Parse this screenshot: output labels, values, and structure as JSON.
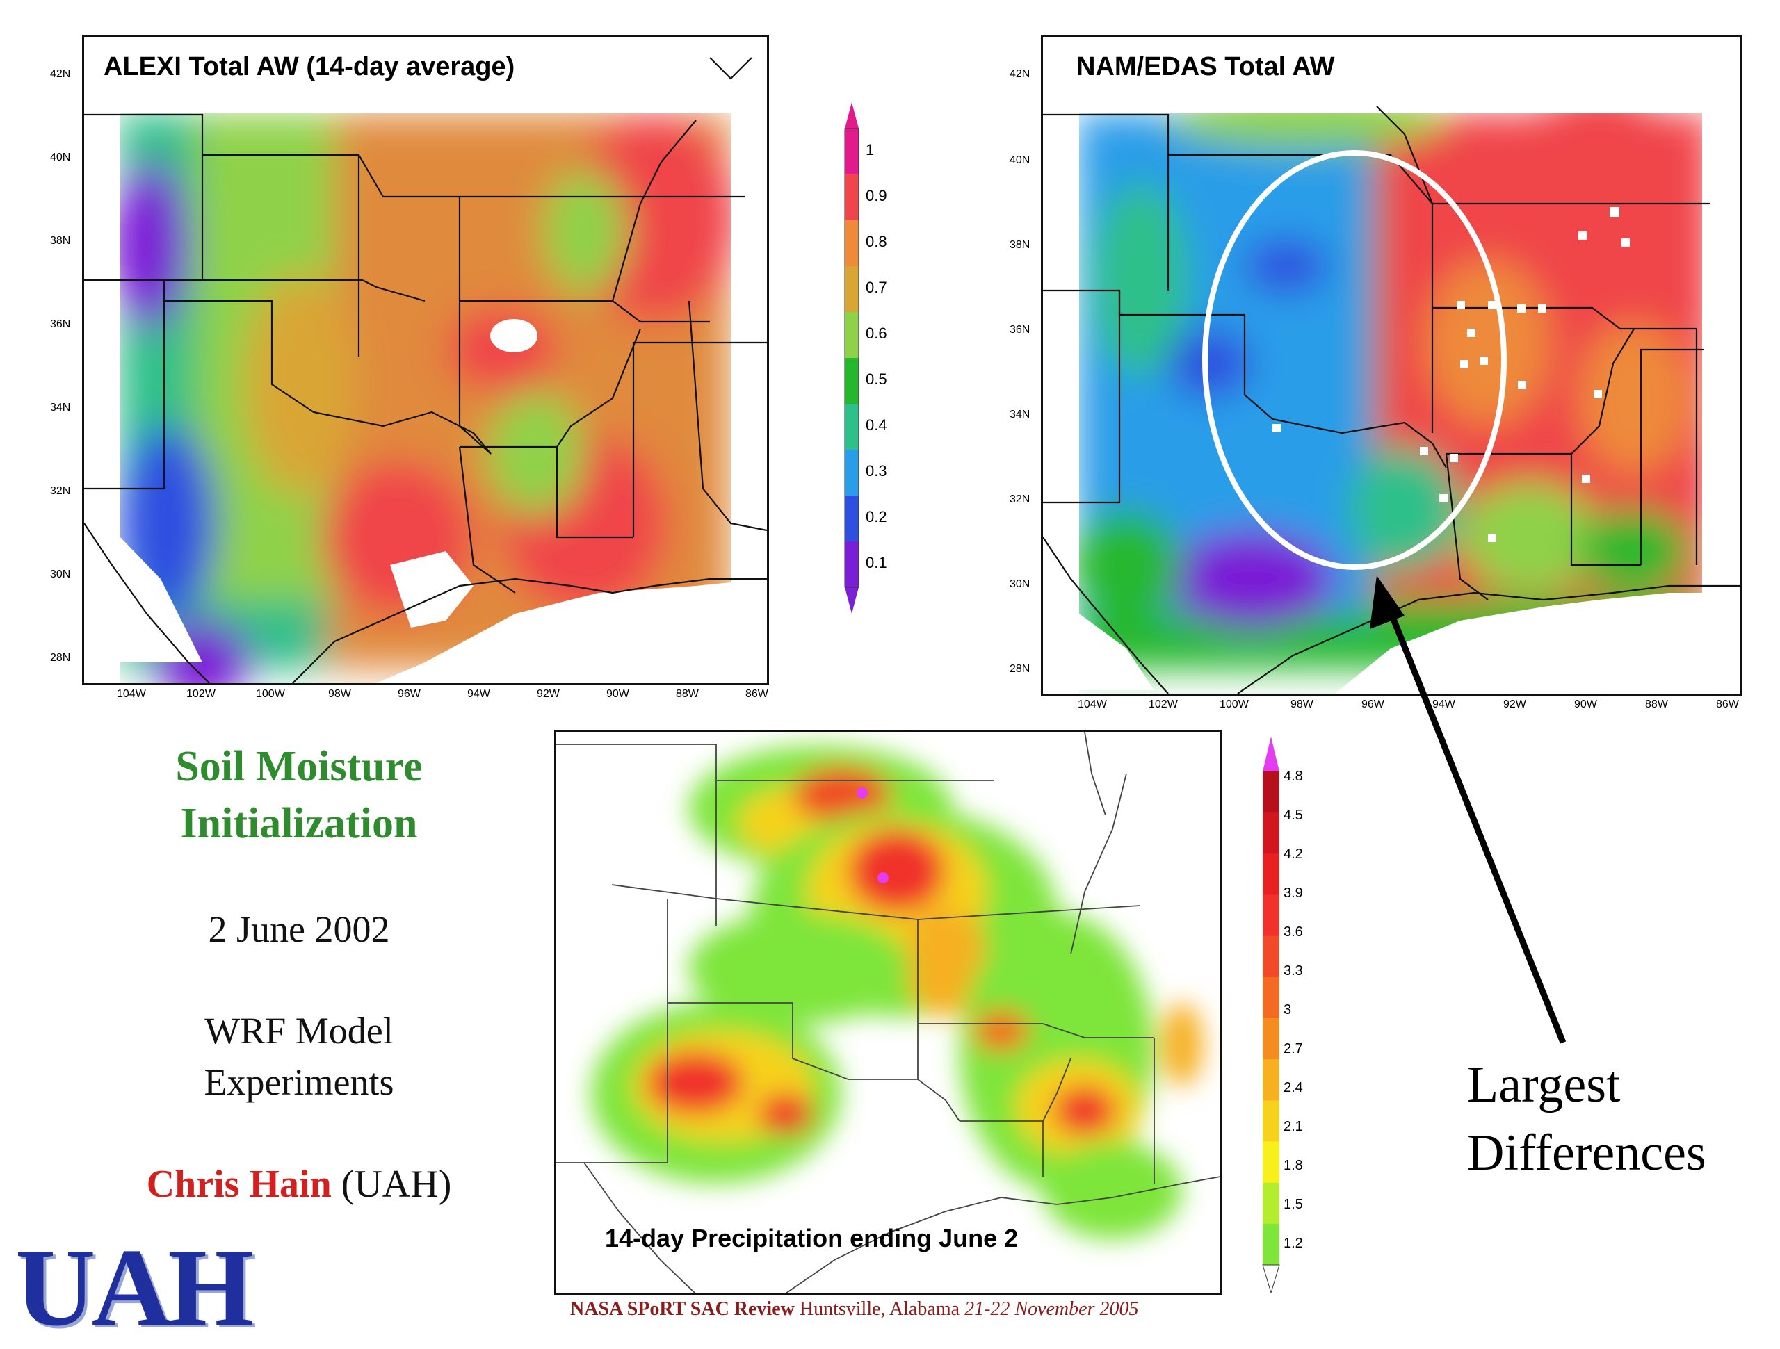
{
  "panels": {
    "alexi": {
      "title": "ALEXI Total AW (14-day average)",
      "lat_ticks": [
        "42N",
        "40N",
        "38N",
        "36N",
        "34N",
        "32N",
        "30N",
        "28N"
      ],
      "lon_ticks": [
        "104W",
        "102W",
        "100W",
        "98W",
        "96W",
        "94W",
        "92W",
        "90W",
        "88W",
        "86W"
      ]
    },
    "nam": {
      "title": "NAM/EDAS Total AW",
      "lat_ticks": [
        "42N",
        "40N",
        "38N",
        "36N",
        "34N",
        "32N",
        "30N",
        "28N"
      ],
      "lon_ticks": [
        "104W",
        "102W",
        "100W",
        "98W",
        "96W",
        "94W",
        "92W",
        "90W",
        "88W",
        "86W"
      ]
    },
    "precip": {
      "title": "14-day Precipitation ending June 2"
    }
  },
  "colorbars": {
    "aw": {
      "labels": [
        "1",
        "0.9",
        "0.8",
        "0.7",
        "0.6",
        "0.5",
        "0.4",
        "0.3",
        "0.2",
        "0.1"
      ],
      "colors": [
        "#e31a8c",
        "#f0454a",
        "#ee8a3a",
        "#d9a636",
        "#8fd24a",
        "#25b82e",
        "#2ec08a",
        "#2a9de8",
        "#2f4fe0",
        "#7a1fd6"
      ]
    },
    "precip": {
      "labels": [
        "4.8",
        "4.5",
        "4.2",
        "3.9",
        "3.6",
        "3.3",
        "3",
        "2.7",
        "2.4",
        "2.1",
        "1.8",
        "1.5",
        "1.2"
      ],
      "colors": [
        "#e43cf0",
        "#b5101c",
        "#d2161e",
        "#e8201f",
        "#f0322a",
        "#f04a28",
        "#f46a22",
        "#f48c20",
        "#f6b020",
        "#f6d21c",
        "#f8f01a",
        "#b4ec2e",
        "#7ee53a",
        "#ffffff"
      ]
    }
  },
  "side": {
    "title_line1": "Soil Moisture",
    "title_line2": "Initialization",
    "date": "2 June 2002",
    "model_line1": "WRF Model",
    "model_line2": "Experiments",
    "author_name": "Chris Hain",
    "author_affil": "(UAH)"
  },
  "annotation": {
    "line1": "Largest",
    "line2": "Differences"
  },
  "footer": {
    "org": "NASA SPoRT SAC Review",
    "place": "Huntsville, Alabama",
    "date": "21-22 November 2005"
  },
  "logo": {
    "text": "UAH"
  }
}
